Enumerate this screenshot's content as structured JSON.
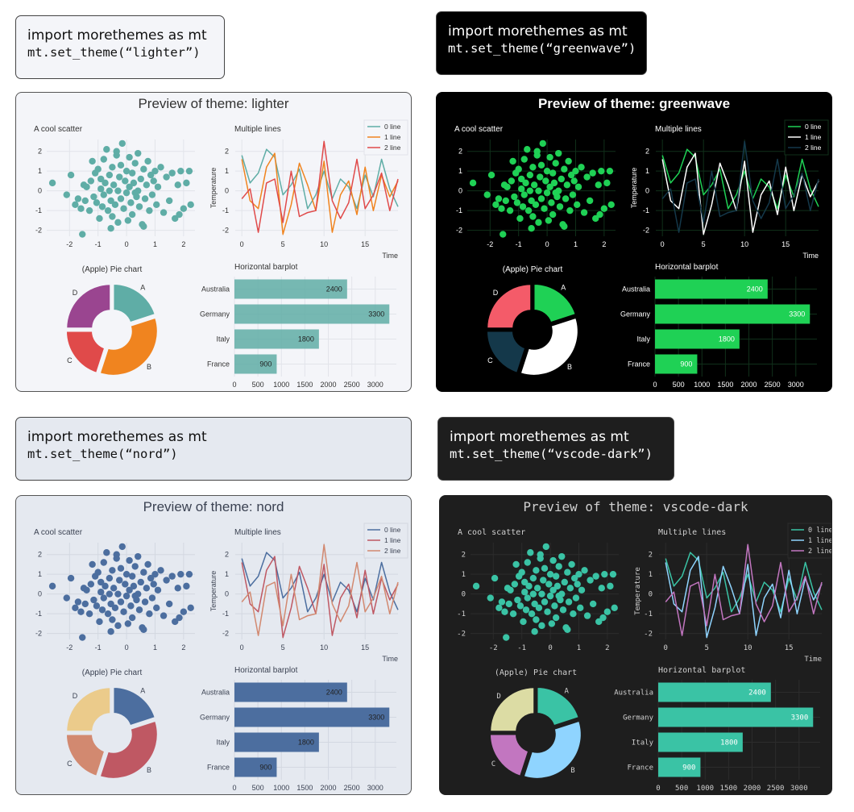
{
  "code_blocks": [
    {
      "line1": "import morethemes as mt",
      "line2": "mt.set_theme(“lighter”)"
    },
    {
      "line1": "import morethemes as mt",
      "line2": "mt.set_theme(“greenwave”)"
    },
    {
      "line1": "import morethemes as mt",
      "line2": "mt.set_theme(“nord”)"
    },
    {
      "line1": "import morethemes as mt",
      "line2": "mt.set_theme(“vscode-dark”)"
    }
  ],
  "themes": [
    {
      "name": "lighter",
      "title": "Preview of theme: lighter",
      "colors": {
        "bg": "#f4f5f9",
        "fg": "#333333",
        "grid": "#e2e4ea",
        "c1": "#5fada6",
        "c2": "#f0841f",
        "c3": "#e04a4a",
        "c4": "#9a4590",
        "border": "#555555"
      }
    },
    {
      "name": "greenwave",
      "title": "Preview of theme: greenwave",
      "colors": {
        "bg": "#000000",
        "fg": "#ffffff",
        "grid": "#10301a",
        "c1": "#1fd155",
        "c2": "#ffffff",
        "c3": "#14384a",
        "c4": "#f45b69",
        "border": "#000000"
      }
    },
    {
      "name": "nord",
      "title": "Preview of theme: nord",
      "colors": {
        "bg": "#e5e9f0",
        "fg": "#3b4252",
        "grid": "#d3d8e1",
        "c1": "#4c6e9f",
        "c2": "#bf5863",
        "c3": "#d28970",
        "c4": "#ebcb8b",
        "border": "#555555"
      }
    },
    {
      "name": "vscode-dark",
      "title": "Preview of theme: vscode-dark",
      "colors": {
        "bg": "#1e1e1e",
        "fg": "#d0d0d0",
        "grid": "#2c2c2c",
        "c1": "#3ac3a5",
        "c2": "#8fd4ff",
        "c3": "#c276c0",
        "c4": "#dcdca4",
        "border": "#1e1e1e"
      }
    }
  ],
  "chart_data": [
    {
      "type": "scatter",
      "title": "A cool scatter",
      "xlim": [
        -2.8,
        2.4
      ],
      "ylim": [
        -2.3,
        2.6
      ],
      "xticks": [
        "-2",
        "-1",
        "0",
        "1",
        "2"
      ],
      "yticks": [
        "-2",
        "-1",
        "0",
        "1",
        "2"
      ],
      "x": [
        -2.6,
        -2.1,
        -1.95,
        -1.8,
        -1.6,
        -1.55,
        -1.5,
        -1.45,
        -1.4,
        -1.3,
        -1.25,
        -1.2,
        -1.15,
        -1.1,
        -1.05,
        -1.0,
        -0.95,
        -0.9,
        -0.9,
        -0.85,
        -0.8,
        -0.8,
        -0.75,
        -0.7,
        -0.65,
        -0.6,
        -0.6,
        -0.55,
        -0.5,
        -0.5,
        -0.45,
        -0.4,
        -0.35,
        -0.3,
        -0.3,
        -0.25,
        -0.2,
        -0.2,
        -0.15,
        -0.1,
        -0.05,
        0.0,
        0.0,
        0.05,
        0.1,
        0.1,
        0.15,
        0.2,
        0.2,
        0.25,
        0.3,
        0.35,
        0.4,
        0.4,
        0.45,
        0.5,
        0.55,
        0.6,
        0.65,
        0.7,
        0.75,
        0.8,
        0.85,
        0.9,
        0.95,
        1.0,
        1.05,
        1.1,
        1.2,
        1.3,
        1.4,
        1.5,
        1.6,
        1.7,
        1.8,
        1.9,
        2.0,
        2.1,
        2.2,
        2.25,
        1.85,
        -0.35,
        -0.55,
        0.3,
        -1.7,
        0.6
      ],
      "y": [
        0.4,
        -0.2,
        0.8,
        -0.7,
        -0.9,
        -2.2,
        0.3,
        -0.5,
        0.2,
        -1.0,
        0.5,
        1.5,
        -0.3,
        0.9,
        -0.6,
        1.1,
        -1.4,
        0.1,
        0.6,
        -0.8,
        1.6,
        -0.2,
        0.4,
        2.1,
        -1.0,
        0.0,
        0.8,
        -0.5,
        1.2,
        -1.3,
        0.3,
        -0.7,
        1.8,
        0.0,
        -1.6,
        0.7,
        -0.4,
        1.3,
        2.4,
        -0.9,
        0.5,
        -0.1,
        1.0,
        -1.5,
        0.2,
        1.7,
        -0.6,
        0.9,
        -1.2,
        0.4,
        1.4,
        -0.3,
        0.0,
        1.9,
        -0.8,
        0.6,
        -1.7,
        1.1,
        -0.4,
        0.3,
        1.5,
        -1.0,
        0.8,
        -0.2,
        0.5,
        1.0,
        -0.7,
        0.2,
        1.2,
        -1.1,
        0.7,
        -0.5,
        0.9,
        -1.4,
        0.3,
        1.0,
        -0.9,
        0.4,
        1.0,
        -0.7,
        -1.2,
        2.0,
        -1.9,
        -0.1,
        -0.4,
        -1.8
      ]
    },
    {
      "type": "line",
      "title": "Multiple lines",
      "xlabel": "Time",
      "ylabel": "Temperature",
      "xlim": [
        -0.8,
        19
      ],
      "ylim": [
        -2.3,
        2.6
      ],
      "xticks": [
        "0",
        "5",
        "10",
        "15"
      ],
      "yticks": [
        "-2",
        "-1",
        "0",
        "1",
        "2"
      ],
      "x": [
        0,
        1,
        2,
        3,
        4,
        5,
        6,
        7,
        8,
        9,
        10,
        11,
        12,
        13,
        14,
        15,
        16,
        17,
        18,
        19
      ],
      "series": [
        {
          "name": "0 line",
          "values": [
            1.8,
            0.4,
            0.9,
            2.1,
            1.7,
            -0.2,
            0.3,
            1.1,
            -0.9,
            -0.2,
            1.0,
            -0.4,
            0.6,
            0.2,
            -0.9,
            0.8,
            -0.3,
            1.6,
            0.1,
            -0.8
          ]
        },
        {
          "name": "1 line",
          "values": [
            1.6,
            -0.5,
            -0.9,
            1.2,
            1.9,
            -2.2,
            -0.7,
            1.4,
            0.3,
            -1.0,
            1.5,
            -2.1,
            -0.2,
            0.5,
            -1.2,
            1.2,
            -1.0,
            0.8,
            -0.3,
            0.5
          ]
        },
        {
          "name": "2 line",
          "values": [
            -0.4,
            0.1,
            -2.1,
            0.4,
            0.6,
            -1.6,
            1.0,
            -1.3,
            -1.1,
            -1.0,
            2.5,
            -0.5,
            -1.4,
            -0.6,
            1.6,
            -0.9,
            -0.2,
            0.9,
            -1.0,
            0.6
          ]
        }
      ]
    },
    {
      "type": "pie",
      "title": "(Apple) Pie chart",
      "labels": [
        "A",
        "B",
        "C",
        "D"
      ],
      "values": [
        20,
        35,
        20,
        25
      ]
    },
    {
      "type": "bar",
      "orientation": "horizontal",
      "title": "Horizontal barplot",
      "categories": [
        "Australia",
        "Germany",
        "Italy",
        "France"
      ],
      "values": [
        2400,
        3300,
        1800,
        900
      ],
      "xlim": [
        0,
        3450
      ],
      "xticks": [
        0,
        500,
        1000,
        1500,
        2000,
        2500,
        3000
      ]
    }
  ]
}
